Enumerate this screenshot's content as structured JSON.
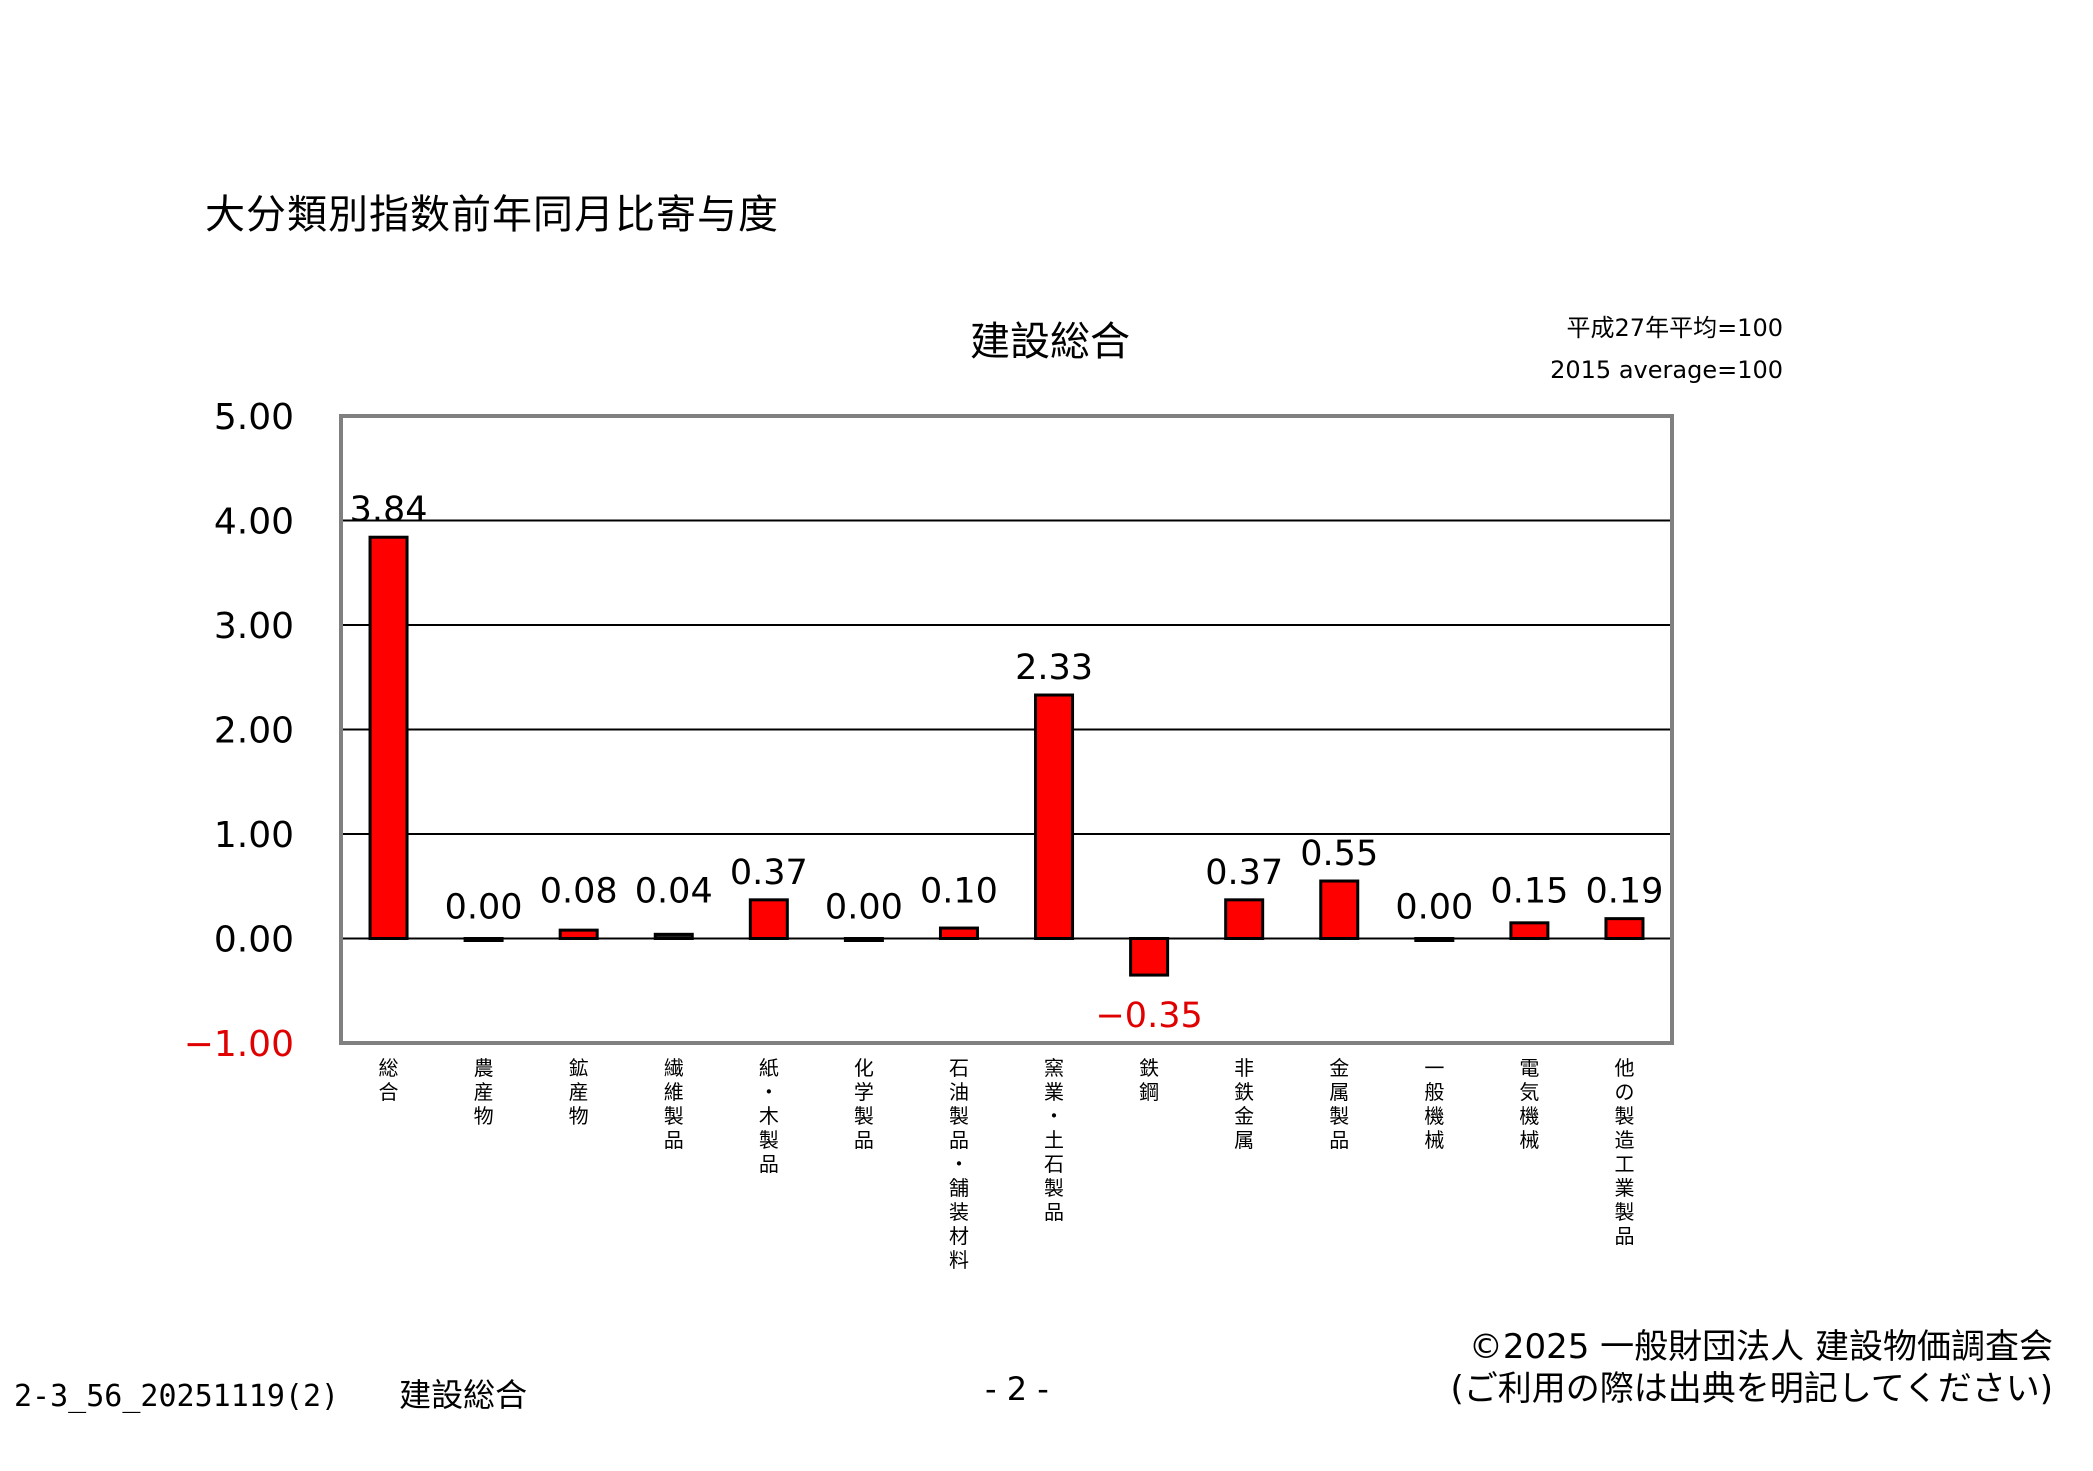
{
  "page": {
    "heading": "大分類別指数前年同月比寄与度",
    "base_note_jp": "平成27年平均=100",
    "base_note_en": "2015 average=100"
  },
  "chart_data": {
    "type": "bar",
    "title": "建設総合",
    "categories": [
      "総合",
      "農産物",
      "鉱産物",
      "繊維製品",
      "紙・木製品",
      "化学製品",
      "石油製品・舗装材料",
      "窯業・土石製品",
      "鉄鋼",
      "非鉄金属",
      "金属製品",
      "一般機械",
      "電気機械",
      "他の製造工業製品"
    ],
    "values": [
      3.84,
      0.0,
      0.08,
      0.04,
      0.37,
      0.0,
      0.1,
      2.33,
      -0.35,
      0.37,
      0.55,
      0.0,
      0.15,
      0.19
    ],
    "value_labels": [
      "3.84",
      "0.00",
      "0.08",
      "0.04",
      "0.37",
      "0.00",
      "0.10",
      "2.33",
      "−0.35",
      "0.37",
      "0.55",
      "0.00",
      "0.15",
      "0.19"
    ],
    "yticks": [
      5,
      4,
      3,
      2,
      1,
      0,
      -1
    ],
    "ytick_labels": [
      "5.00",
      "4.00",
      "3.00",
      "2.00",
      "1.00",
      "0.00",
      "−1.00"
    ],
    "ylim": [
      -1,
      5
    ],
    "grid": true,
    "legend": "none",
    "colors": {
      "bar": "#ff0000",
      "negative_text": "#e00000",
      "frame": "#808080"
    }
  },
  "footer": {
    "doc_code": "2-3_56_20251119(2)",
    "doc_title": "建設総合",
    "page_number": "- 2 -",
    "copyright_line1": "©2025 一般財団法人 建設物価調査会",
    "copyright_line2": "(ご利用の際は出典を明記してください)"
  }
}
